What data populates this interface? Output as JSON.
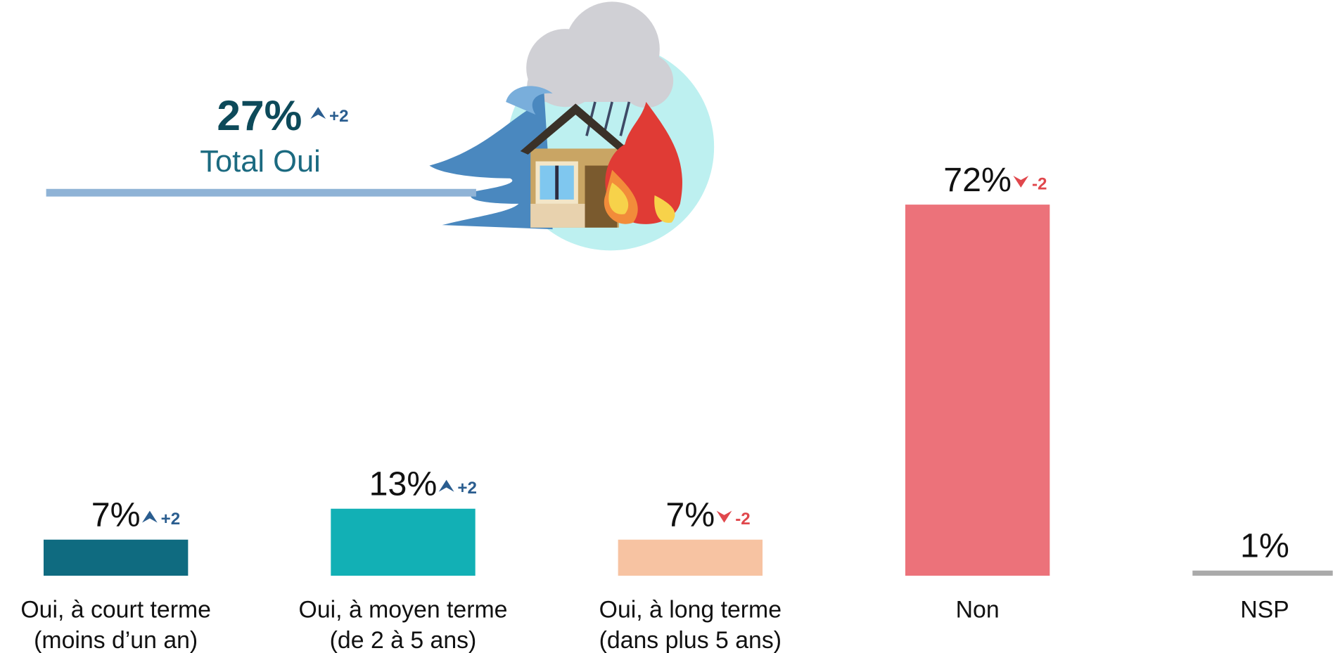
{
  "chart_data": {
    "type": "bar",
    "categories": [
      [
        "Oui, à court terme",
        "(moins d’un an)"
      ],
      [
        "Oui, à moyen terme",
        "(de 2 à 5 ans)"
      ],
      [
        "Oui, à long terme",
        "(dans plus 5 ans)"
      ],
      [
        "Non"
      ],
      [
        "NSP"
      ]
    ],
    "values": [
      7,
      13,
      7,
      72,
      1
    ],
    "value_labels": [
      "7%",
      "13%",
      "7%",
      "72%",
      "1%"
    ],
    "changes": [
      "+2",
      "+2",
      "-2",
      "-2",
      null
    ],
    "colors": [
      "#0f6b80",
      "#12b0b5",
      "#f7c3a2",
      "#ec727a",
      "#aaaaaa"
    ],
    "total": {
      "value": 27,
      "value_label": "27%",
      "change": "+2",
      "label": "Total Oui"
    }
  }
}
